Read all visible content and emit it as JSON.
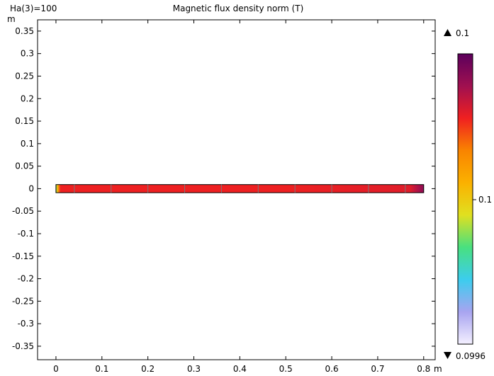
{
  "header": {
    "parameter_label": "Ha(3)=100",
    "title": "Magnetic flux density norm (T)"
  },
  "chart_data": {
    "type": "heatmap",
    "title": "Magnetic flux density norm (T)",
    "x_unit": "m",
    "y_unit": "m",
    "xlim": [
      -0.04,
      0.825
    ],
    "ylim": [
      -0.38,
      0.375
    ],
    "x_ticks": [
      0,
      0.1,
      0.2,
      0.3,
      0.4,
      0.5,
      0.6,
      0.7,
      0.8
    ],
    "x_tick_labels": [
      "0",
      "0.1",
      "0.2",
      "0.3",
      "0.4",
      "0.5",
      "0.6",
      "0.7",
      "0.8"
    ],
    "y_ticks": [
      0.35,
      0.3,
      0.25,
      0.2,
      0.15,
      0.1,
      0.05,
      0,
      -0.05,
      -0.1,
      -0.15,
      -0.2,
      -0.25,
      -0.3,
      -0.35
    ],
    "y_tick_labels": [
      "0.35",
      "0.3",
      "0.25",
      "0.2",
      "0.15",
      "0.1",
      "0.05",
      "0",
      "-0.05",
      "-0.1",
      "-0.15",
      "-0.2",
      "-0.25",
      "-0.3",
      "-0.35"
    ],
    "domain": {
      "x_start": 0,
      "x_end": 0.8,
      "y_min": -0.009,
      "y_max": 0.009
    },
    "field_profile": {
      "x": [
        0,
        0.004,
        0.01,
        0.5,
        0.77,
        0.785,
        0.8
      ],
      "normalized_value": [
        0.38,
        0.55,
        0.78,
        0.78,
        0.8,
        0.86,
        0.92
      ]
    },
    "mesh_divisions_x": [
      0.04,
      0.12,
      0.2,
      0.28,
      0.36,
      0.44,
      0.52,
      0.6,
      0.68,
      0.76
    ],
    "colorbar": {
      "max_label": "0.1",
      "mid_label": "0.1",
      "min_label": "0.0996",
      "colors": [
        "#f4f0ff",
        "#a8a4f0",
        "#3ccdee",
        "#48e080",
        "#e0e020",
        "#fbb100",
        "#f98400",
        "#f02020",
        "#a01050",
        "#5c005c"
      ]
    }
  }
}
